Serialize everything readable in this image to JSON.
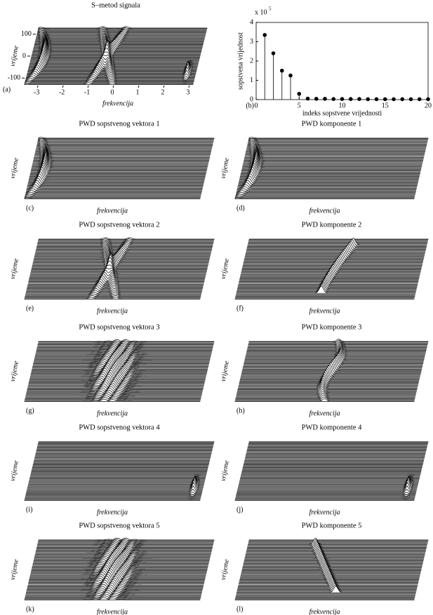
{
  "chart_data": [
    {
      "type": "waterfall",
      "title": "S–metod signala",
      "label": "(a)",
      "xlabel": "frekvencija",
      "ylabel": "vrijeme",
      "xlim": [
        -3.2,
        3.2
      ],
      "xticks": [
        -3,
        -2,
        -1,
        0,
        1,
        2,
        3
      ],
      "ylim": [
        -128,
        128
      ],
      "yticks": [
        -100,
        0,
        100
      ]
    },
    {
      "type": "stem",
      "label": "(b)",
      "scale_label": "x 10",
      "scale_exponent": "5",
      "xlabel": "indeks sopstvene vrijednosti",
      "ylabel": "sopstvena vrijednost",
      "x": [
        1,
        2,
        3,
        4,
        5,
        6,
        7,
        8,
        9,
        10,
        11,
        12,
        13,
        14,
        15,
        16,
        17,
        18,
        19,
        20
      ],
      "values": [
        3.35,
        2.4,
        1.5,
        1.25,
        0.3,
        0.05,
        0.04,
        0.04,
        0.03,
        0.03,
        0.03,
        0.03,
        0.02,
        0.02,
        0.02,
        0.02,
        0.02,
        0.02,
        0.02,
        0.02
      ],
      "color": "#000000",
      "xlim": [
        0,
        20
      ],
      "xticks": [
        0,
        5,
        10,
        15,
        20
      ],
      "ylim": [
        0,
        4
      ],
      "yticks": [
        0,
        1,
        2,
        3,
        4
      ]
    },
    {
      "type": "waterfall",
      "title": "PWD sopstvenog vektora 1",
      "label": "(c)",
      "xlabel": "frekvencija",
      "ylabel": "vrijeme"
    },
    {
      "type": "waterfall",
      "title": "PWD komponente 1",
      "label": "(d)",
      "xlabel": "frekvencija",
      "ylabel": "vrijeme"
    },
    {
      "type": "waterfall",
      "title": "PWD sopstvenog vektora 2",
      "label": "(e)",
      "xlabel": "frekvencija",
      "ylabel": "vrijeme"
    },
    {
      "type": "waterfall",
      "title": "PWD komponente 2",
      "label": "(f)",
      "xlabel": "frekvencija",
      "ylabel": "vrijeme"
    },
    {
      "type": "waterfall",
      "title": "PWD sopstvenog vektora 3",
      "label": "(g)",
      "xlabel": "frekvencija",
      "ylabel": "vrijeme"
    },
    {
      "type": "waterfall",
      "title": "PWD komponente 3",
      "label": "(h)",
      "xlabel": "frekvencija",
      "ylabel": "vrijeme"
    },
    {
      "type": "waterfall",
      "title": "PWD sopstvenog vektora 4",
      "label": "(i)",
      "xlabel": "frekvencija",
      "ylabel": "vrijeme"
    },
    {
      "type": "waterfall",
      "title": "PWD komponente 4",
      "label": "(j)",
      "xlabel": "frekvencija",
      "ylabel": "vrijeme"
    },
    {
      "type": "waterfall",
      "title": "PWD sopstvenog vektora 5",
      "label": "(k)",
      "xlabel": "frekvencija",
      "ylabel": "vrijeme"
    },
    {
      "type": "waterfall",
      "title": "PWD komponente 5",
      "label": "(l)",
      "xlabel": "frekvencija",
      "ylabel": "vrijeme"
    }
  ]
}
